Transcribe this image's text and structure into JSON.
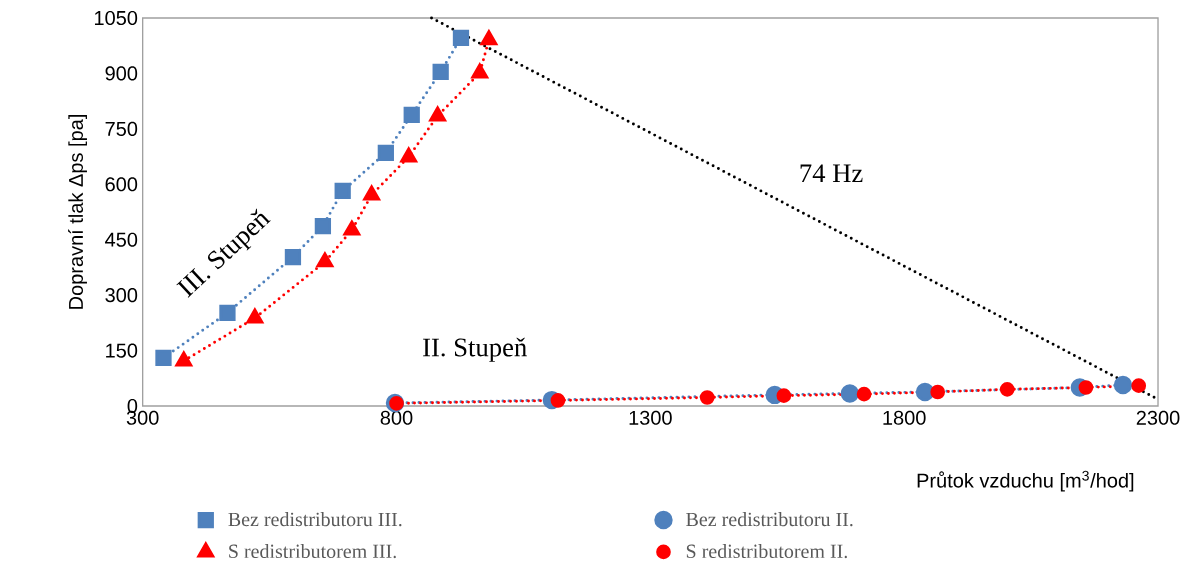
{
  "chart_data": {
    "type": "line",
    "xlabel": "Průtok vzduchu [m$^{3}$/hod]",
    "ylabel": "Dopravní tlak Δps [pa]",
    "xlim": [
      300,
      2300
    ],
    "xticks": [
      300,
      800,
      1300,
      1800,
      2300
    ],
    "ylim": [
      0,
      1050
    ],
    "yticks": [
      0,
      150,
      300,
      450,
      600,
      750,
      900,
      1050
    ],
    "grid": false,
    "legend": "bottom",
    "line_style": "dotted",
    "annotations": [
      "III. Stupeň",
      "II. Stupeň",
      "74 Hz"
    ],
    "series": [
      {
        "name": "Bez redistributoru III.",
        "color": "#4f81bd",
        "marker": "square",
        "x": [
          341,
          467,
          596,
          655,
          694,
          779,
          830,
          887,
          927
        ],
        "values": [
          130,
          252,
          403,
          487,
          582,
          685,
          788,
          904,
          996
        ]
      },
      {
        "name": "Bez redistributoru II.",
        "color": "#4f81bd",
        "marker": "circle",
        "x": [
          797,
          1106,
          1545,
          1693,
          1841,
          2146,
          2231
        ],
        "values": [
          8,
          16,
          30,
          34,
          38,
          50,
          57
        ]
      },
      {
        "name": "S redistributorem III.",
        "color": "#ff0000",
        "marker": "triangle",
        "x": [
          381,
          521,
          659,
          712,
          751,
          824,
          881,
          964,
          982
        ],
        "values": [
          122,
          238,
          390,
          476,
          571,
          674,
          785,
          901,
          991
        ]
      },
      {
        "name": "S redistributorem II.",
        "color": "#ff0000",
        "marker": "circle",
        "x": [
          800,
          1118,
          1412,
          1563,
          1721,
          1866,
          2003,
          2158,
          2262
        ],
        "values": [
          7,
          15,
          23,
          28,
          32,
          38,
          45,
          50,
          55
        ]
      },
      {
        "color": "#000000",
        "marker": "none",
        "x": [
          869,
          2300
        ],
        "values": [
          1050,
          18
        ]
      }
    ]
  }
}
